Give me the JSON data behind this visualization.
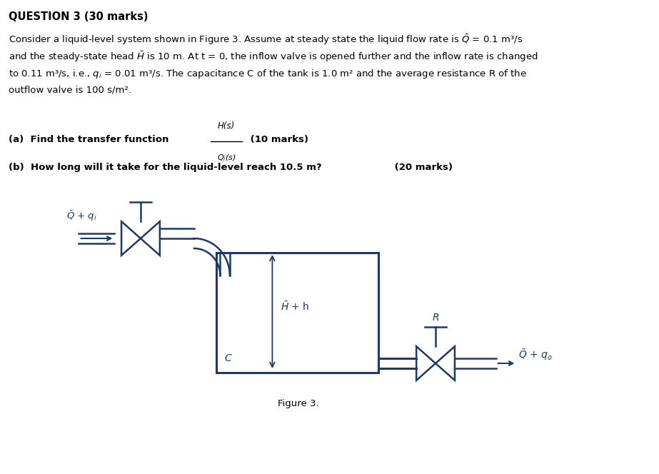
{
  "title_line": "QUESTION 3 (30 marks)",
  "body_text": [
    "Consider a liquid-level system shown in Figure 3. Assume at steady state the liquid flow rate is $\\bar{Q}$ = 0.1 m³/s",
    "and the steady-state head $\\bar{H}$ is 10 m. At t = 0, the inflow valve is opened further and the inflow rate is changed",
    "to 0.11 m³/s, i.e., $q_i$ = 0.01 m³/s. The capacitance C of the tank is 1.0 m² and the average resistance R of the",
    "outflow valve is 100 s/m²."
  ],
  "part_a_text": "(a)  Find the transfer function",
  "part_a_marks": " (10 marks)",
  "part_b_text": "(b)  How long will it take for the liquid-level reach 10.5 m?",
  "part_b_marks": " (20 marks)",
  "figure_caption": "Figure 3.",
  "diagram_color": "#1F3864",
  "text_color": "#000000",
  "bg_color": "#ffffff",
  "inflow_label": "$\\bar{Q}$ + $q_i$",
  "tank_label_Hh": "$\\bar{H}$ + h",
  "tank_label_C": "C",
  "outflow_label_R": "R",
  "outflow_label_Q": "$\\bar{Q}$ + $q_o$"
}
